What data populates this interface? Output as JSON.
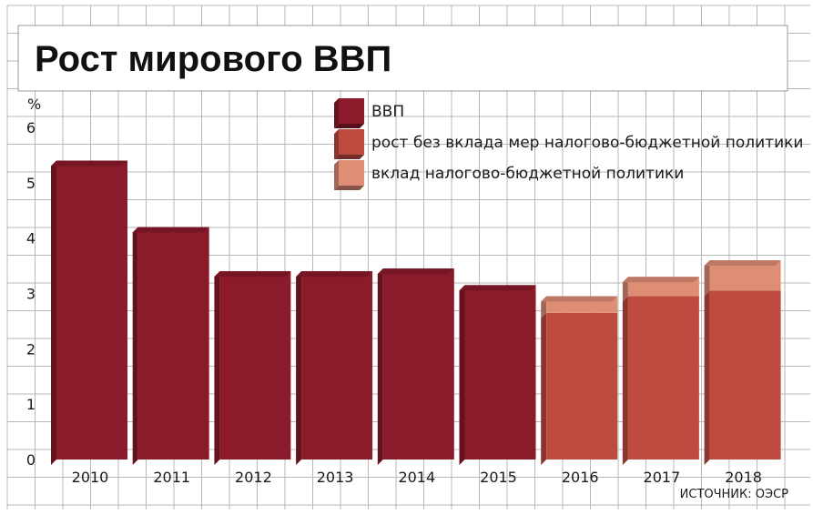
{
  "chart_data": {
    "type": "bar",
    "title": "Рост мирового ВВП",
    "ylabel": "%",
    "ylim": [
      0,
      6
    ],
    "yticks": [
      "0",
      "1",
      "2",
      "3",
      "4",
      "5",
      "6"
    ],
    "grid": true,
    "legend_position": "top-right",
    "categories": [
      "2010",
      "2011",
      "2012",
      "2013",
      "2014",
      "2015",
      "2016",
      "2017",
      "2018"
    ],
    "series": [
      {
        "name": "ВВП",
        "color": "#8b1a2a",
        "values": [
          5.4,
          4.2,
          3.4,
          3.4,
          3.45,
          3.15,
          null,
          null,
          null
        ]
      },
      {
        "name": "рост без вклада мер налогово-бюджетной политики",
        "color": "#bf4a40",
        "values": [
          null,
          null,
          null,
          null,
          null,
          null,
          2.65,
          2.95,
          3.05
        ]
      },
      {
        "name": "вклад налогово-бюджетной политики",
        "color": "#df8e76",
        "values": [
          null,
          null,
          null,
          null,
          null,
          null,
          0.3,
          0.35,
          0.55
        ]
      }
    ],
    "source": "ИСТОЧНИК: ОЭСР"
  }
}
